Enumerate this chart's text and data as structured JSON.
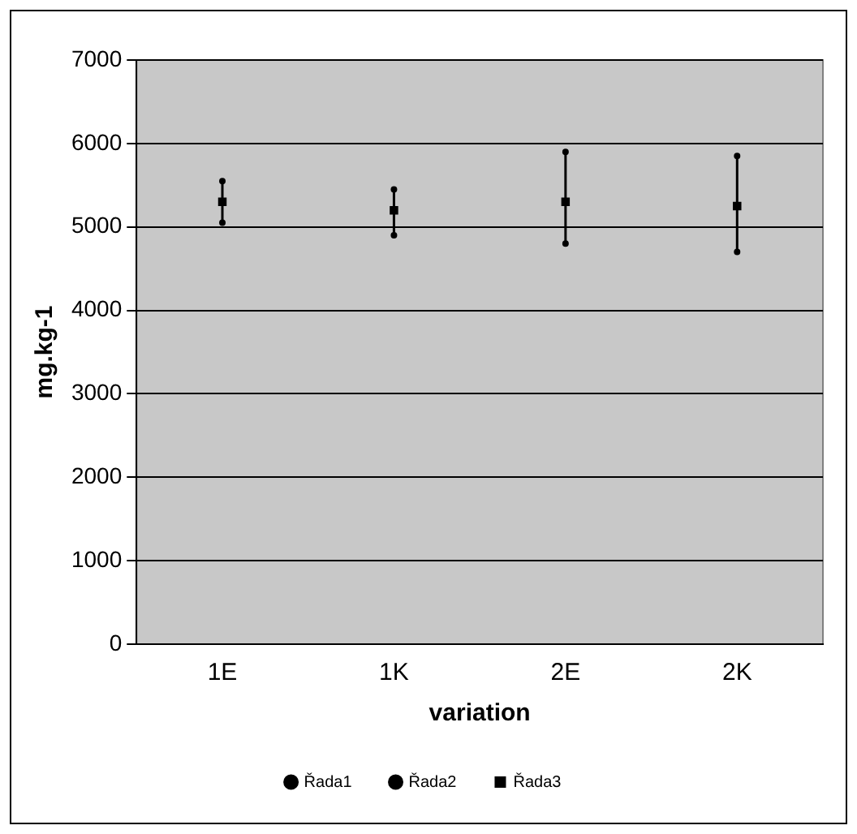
{
  "chart_data": {
    "type": "scatter",
    "xlabel": "variation",
    "ylabel": "mg.kg-1",
    "categories": [
      "1E",
      "1K",
      "2E",
      "2K"
    ],
    "series": [
      {
        "name": "Řada1",
        "color": "#000000",
        "marker": "circle",
        "values": [
          5550,
          5450,
          5900,
          5850
        ]
      },
      {
        "name": "Řada2",
        "color": "#000000",
        "marker": "circle",
        "values": [
          5050,
          4900,
          4800,
          4700
        ]
      },
      {
        "name": "Řada3",
        "color": "#000000",
        "marker": "square",
        "values": [
          5300,
          5200,
          5300,
          5250
        ]
      }
    ],
    "ylim": [
      0,
      7000
    ],
    "yticks": [
      0,
      1000,
      2000,
      3000,
      4000,
      5000,
      6000,
      7000
    ],
    "grid": "y",
    "legend": "bottom"
  }
}
